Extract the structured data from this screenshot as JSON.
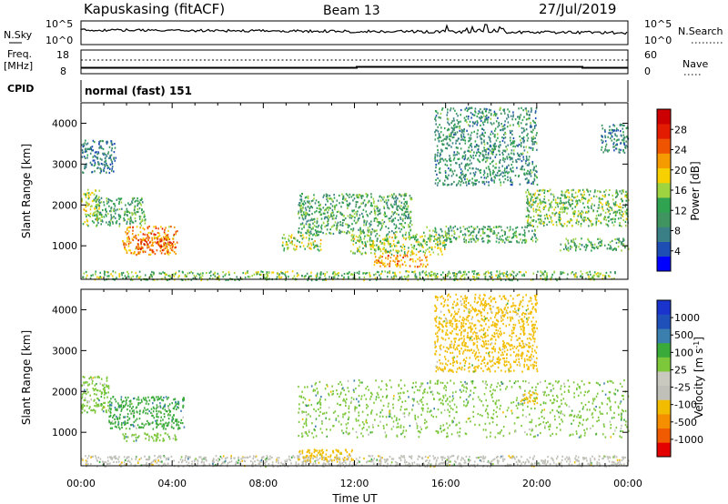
{
  "header": {
    "site": "Kapuskasing (fitACF)",
    "beam": "Beam 13",
    "date": "27/Jul/2019"
  },
  "param_panels": {
    "nsky_label": "N.Sky",
    "nsky_ticks": [
      "10^5",
      "10^0"
    ],
    "nsearch_label": "N.Search",
    "nsearch_ticks": [
      "10^5",
      "10^0"
    ],
    "freq_label": [
      "Freq.",
      "[MHz]"
    ],
    "freq_ticks": [
      "18",
      "8"
    ],
    "nave_label": "Nave",
    "nave_ticks": [
      "60",
      "0"
    ],
    "cpid_label": "CPID",
    "cpid_text": "normal (fast) 151"
  },
  "colors": {
    "power": [
      "#0000ff",
      "#1e4db3",
      "#3a7f86",
      "#3f9460",
      "#2fa34f",
      "#9ed43f",
      "#f6d000",
      "#f59b00",
      "#ef5500",
      "#e31b00",
      "#cc0000"
    ],
    "velocity": [
      "#e50000",
      "#f05a00",
      "#f58f00",
      "#f2bd00",
      "#c0c0b8",
      "#c9c9c0",
      "#7cc73a",
      "#3aaa3a",
      "#3a7fae",
      "#1f4fb8",
      "#1a33cc"
    ]
  },
  "chart_data": [
    {
      "type": "heatmap",
      "name": "power",
      "ylabel": "Slant Range [km]",
      "yticks": [
        "4000",
        "3000",
        "2000",
        "1000"
      ],
      "ylim": [
        180,
        4500
      ],
      "xlim": [
        0,
        24
      ],
      "colorbar_label": "Power [dB]",
      "colorbar_ticks": [
        "28",
        "24",
        "20",
        "16",
        "12",
        "8",
        "4"
      ],
      "colorbar_range": [
        0,
        32
      ],
      "regions": [
        {
          "t": [
            0.0,
            0.8
          ],
          "r": [
            1500,
            2400
          ],
          "v": 16
        },
        {
          "t": [
            0.6,
            2.8
          ],
          "r": [
            1500,
            2200
          ],
          "v": 12
        },
        {
          "t": [
            1.8,
            4.2
          ],
          "r": [
            800,
            1500
          ],
          "v": 22
        },
        {
          "t": [
            2.4,
            4.0
          ],
          "r": [
            900,
            1200
          ],
          "v": 26
        },
        {
          "t": [
            0.0,
            1.5
          ],
          "r": [
            2800,
            3600
          ],
          "v": 8
        },
        {
          "t": [
            0.0,
            23.5
          ],
          "r": [
            180,
            400
          ],
          "v": 14
        },
        {
          "t": [
            8.8,
            10.5
          ],
          "r": [
            900,
            1300
          ],
          "v": 16
        },
        {
          "t": [
            9.5,
            14.5
          ],
          "r": [
            1300,
            2300
          ],
          "v": 12
        },
        {
          "t": [
            11.8,
            16.0
          ],
          "r": [
            800,
            1300
          ],
          "v": 16
        },
        {
          "t": [
            12.8,
            15.2
          ],
          "r": [
            500,
            800
          ],
          "v": 22
        },
        {
          "t": [
            15.0,
            20.0
          ],
          "r": [
            1100,
            1500
          ],
          "v": 12
        },
        {
          "t": [
            19.5,
            24.0
          ],
          "r": [
            1500,
            2400
          ],
          "v": 14
        },
        {
          "t": [
            21.0,
            24.0
          ],
          "r": [
            900,
            1200
          ],
          "v": 12
        },
        {
          "t": [
            15.5,
            20.0
          ],
          "r": [
            2500,
            4400
          ],
          "v": 10
        },
        {
          "t": [
            22.8,
            24.0
          ],
          "r": [
            3300,
            4000
          ],
          "v": 8
        }
      ]
    },
    {
      "type": "heatmap",
      "name": "velocity",
      "ylabel": "Slant Range [km]",
      "yticks": [
        "4000",
        "3000",
        "2000",
        "1000"
      ],
      "ylim": [
        180,
        4500
      ],
      "xlim": [
        0,
        24
      ],
      "xticks": [
        "00:00",
        "04:00",
        "08:00",
        "12:00",
        "16:00",
        "20:00",
        "00:00"
      ],
      "xlabel": "Time UT",
      "colorbar_label": "Velocity [m s^-1]",
      "colorbar_ticks": [
        "1000",
        "500",
        "100",
        "25",
        "-25",
        "-100",
        "-500",
        "-1000"
      ],
      "regions": [
        {
          "t": [
            0.0,
            1.2
          ],
          "r": [
            1500,
            2400
          ],
          "v": 25
        },
        {
          "t": [
            1.2,
            4.5
          ],
          "r": [
            1100,
            1900
          ],
          "v": 100
        },
        {
          "t": [
            1.8,
            4.2
          ],
          "r": [
            800,
            1000
          ],
          "v": 25
        },
        {
          "t": [
            0.0,
            24.0
          ],
          "r": [
            180,
            450
          ],
          "v": -25
        },
        {
          "t": [
            9.5,
            12.0
          ],
          "r": [
            300,
            600
          ],
          "v": -100
        },
        {
          "t": [
            9.5,
            24.0
          ],
          "r": [
            900,
            2300
          ],
          "v": 25
        },
        {
          "t": [
            19.2,
            20.0
          ],
          "r": [
            1700,
            2000
          ],
          "v": -100
        },
        {
          "t": [
            15.5,
            20.0
          ],
          "r": [
            2500,
            4400
          ],
          "v": -100
        }
      ]
    }
  ]
}
